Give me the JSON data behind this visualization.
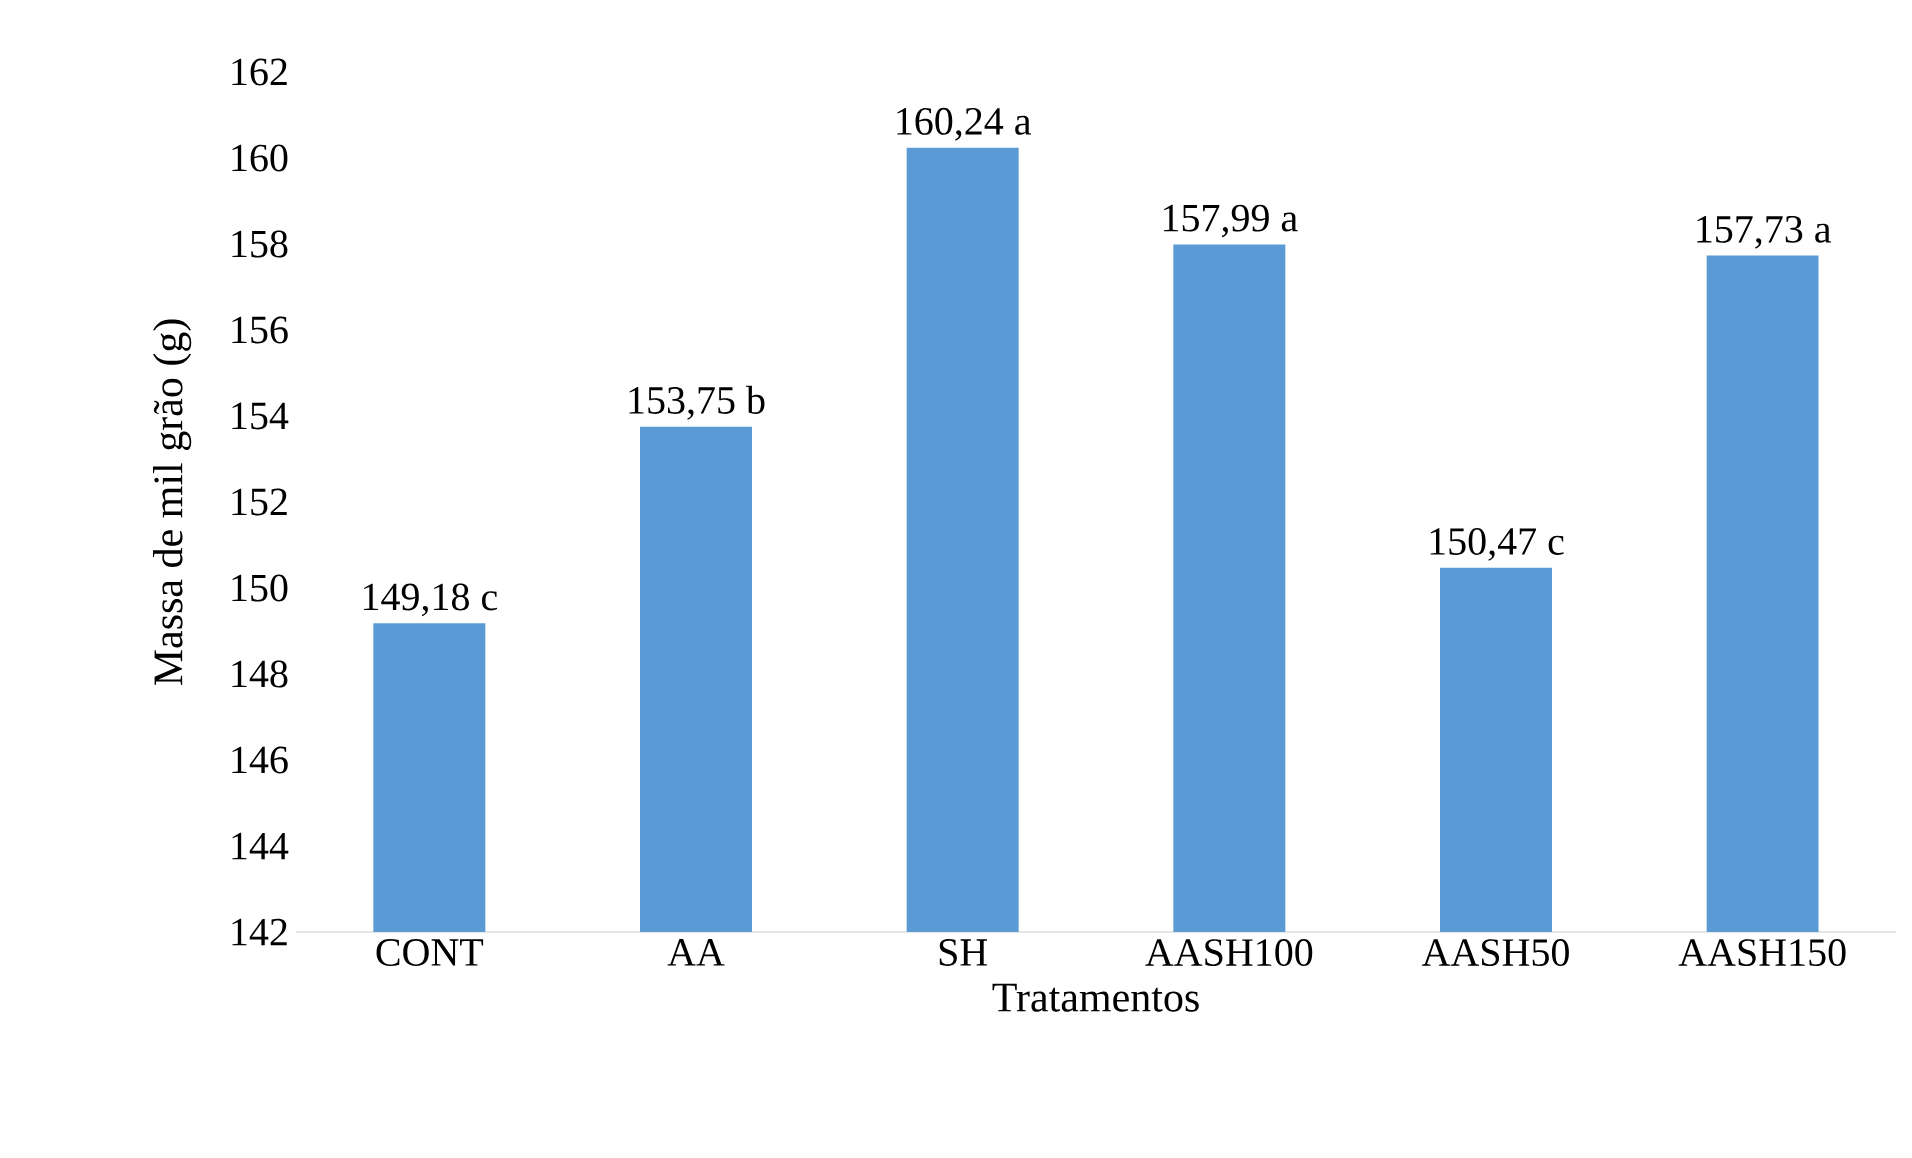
{
  "chart_data": {
    "type": "bar",
    "xlabel": "Tratamentos",
    "ylabel": "Massa de mil grão (g)",
    "categories": [
      "CONT",
      "AA",
      "SH",
      "AASH100",
      "AASH50",
      "AASH150"
    ],
    "values": [
      149.18,
      153.75,
      160.24,
      157.99,
      150.47,
      157.73
    ],
    "value_labels": [
      "149,18 c",
      "153,75 b",
      "160,24 a",
      "157,99 a",
      "150,47 c",
      "157,73 a"
    ],
    "color": "#5b9bd5",
    "ylim": [
      142,
      162
    ],
    "yticks": [
      142,
      144,
      146,
      148,
      150,
      152,
      154,
      156,
      158,
      160,
      162
    ],
    "grid": false
  }
}
